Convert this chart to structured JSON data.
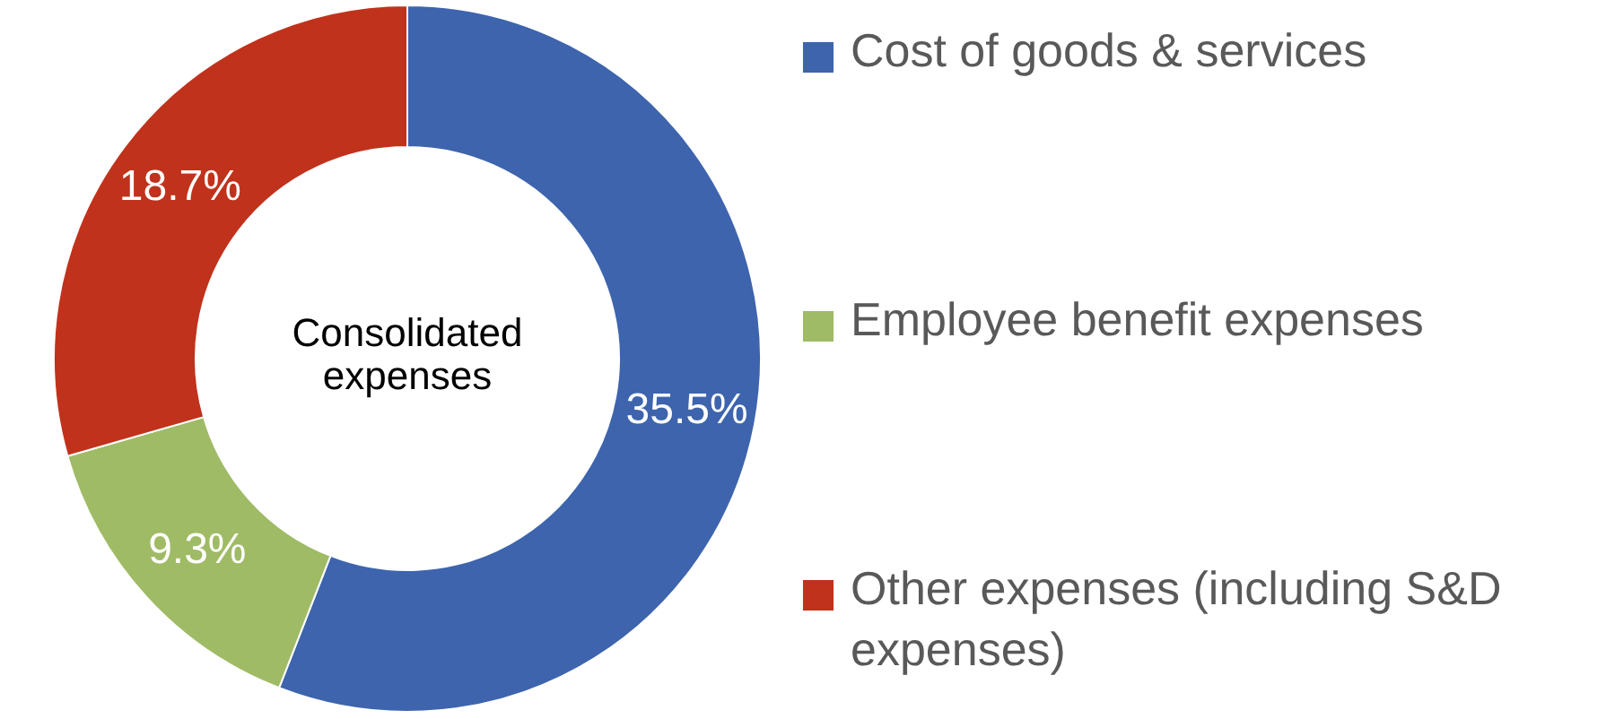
{
  "chart_data": {
    "type": "donut",
    "categories": [
      "Cost of goods & services",
      "Employee benefit expenses",
      "Other expenses (including S&D expenses)"
    ],
    "values": [
      35.5,
      9.3,
      18.7
    ],
    "colors": [
      "#3d64ad",
      "#9fbb65",
      "#c0321c"
    ],
    "value_labels": [
      "35.5%",
      "9.3%",
      "18.7%"
    ],
    "annotations": [
      "Consolidated expenses"
    ],
    "legend": "right"
  }
}
